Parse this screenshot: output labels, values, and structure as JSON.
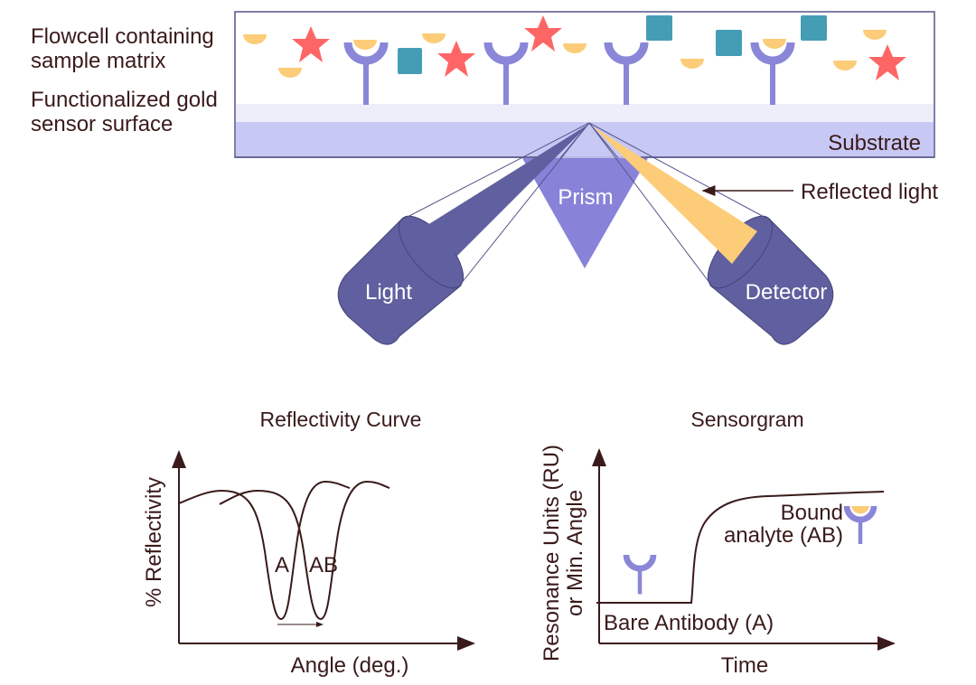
{
  "labels": {
    "flowcell_line1": "Flowcell containing",
    "flowcell_line2": "sample matrix",
    "gold_line1": "Functionalized gold",
    "gold_line2": "sensor surface",
    "substrate": "Substrate",
    "prism": "Prism",
    "reflected_light": "Reflected light",
    "light": "Light",
    "detector": "Detector"
  },
  "reflectivity": {
    "title": "Reflectivity Curve",
    "ylabel": "% Reflectivity",
    "xlabel": "Angle (deg.)",
    "curve_a": "A",
    "curve_ab": "AB"
  },
  "sensorgram": {
    "title": "Sensorgram",
    "ylabel_line1": "Resonance Units (RU)",
    "ylabel_line2": "or Min. Angle",
    "xlabel": "Time",
    "bare": "Bare Antibody (A)",
    "bound_line1": "Bound",
    "bound_line2": "analyte (AB)"
  },
  "colors": {
    "antibody": "#8a86d8",
    "analyte": "#fccc78",
    "star": "#fe6666",
    "square": "#449db5",
    "substrate": "#c8c8f5",
    "gold_layer": "#eeeefb",
    "device": "#6060a0",
    "prism": "#8883d8"
  }
}
